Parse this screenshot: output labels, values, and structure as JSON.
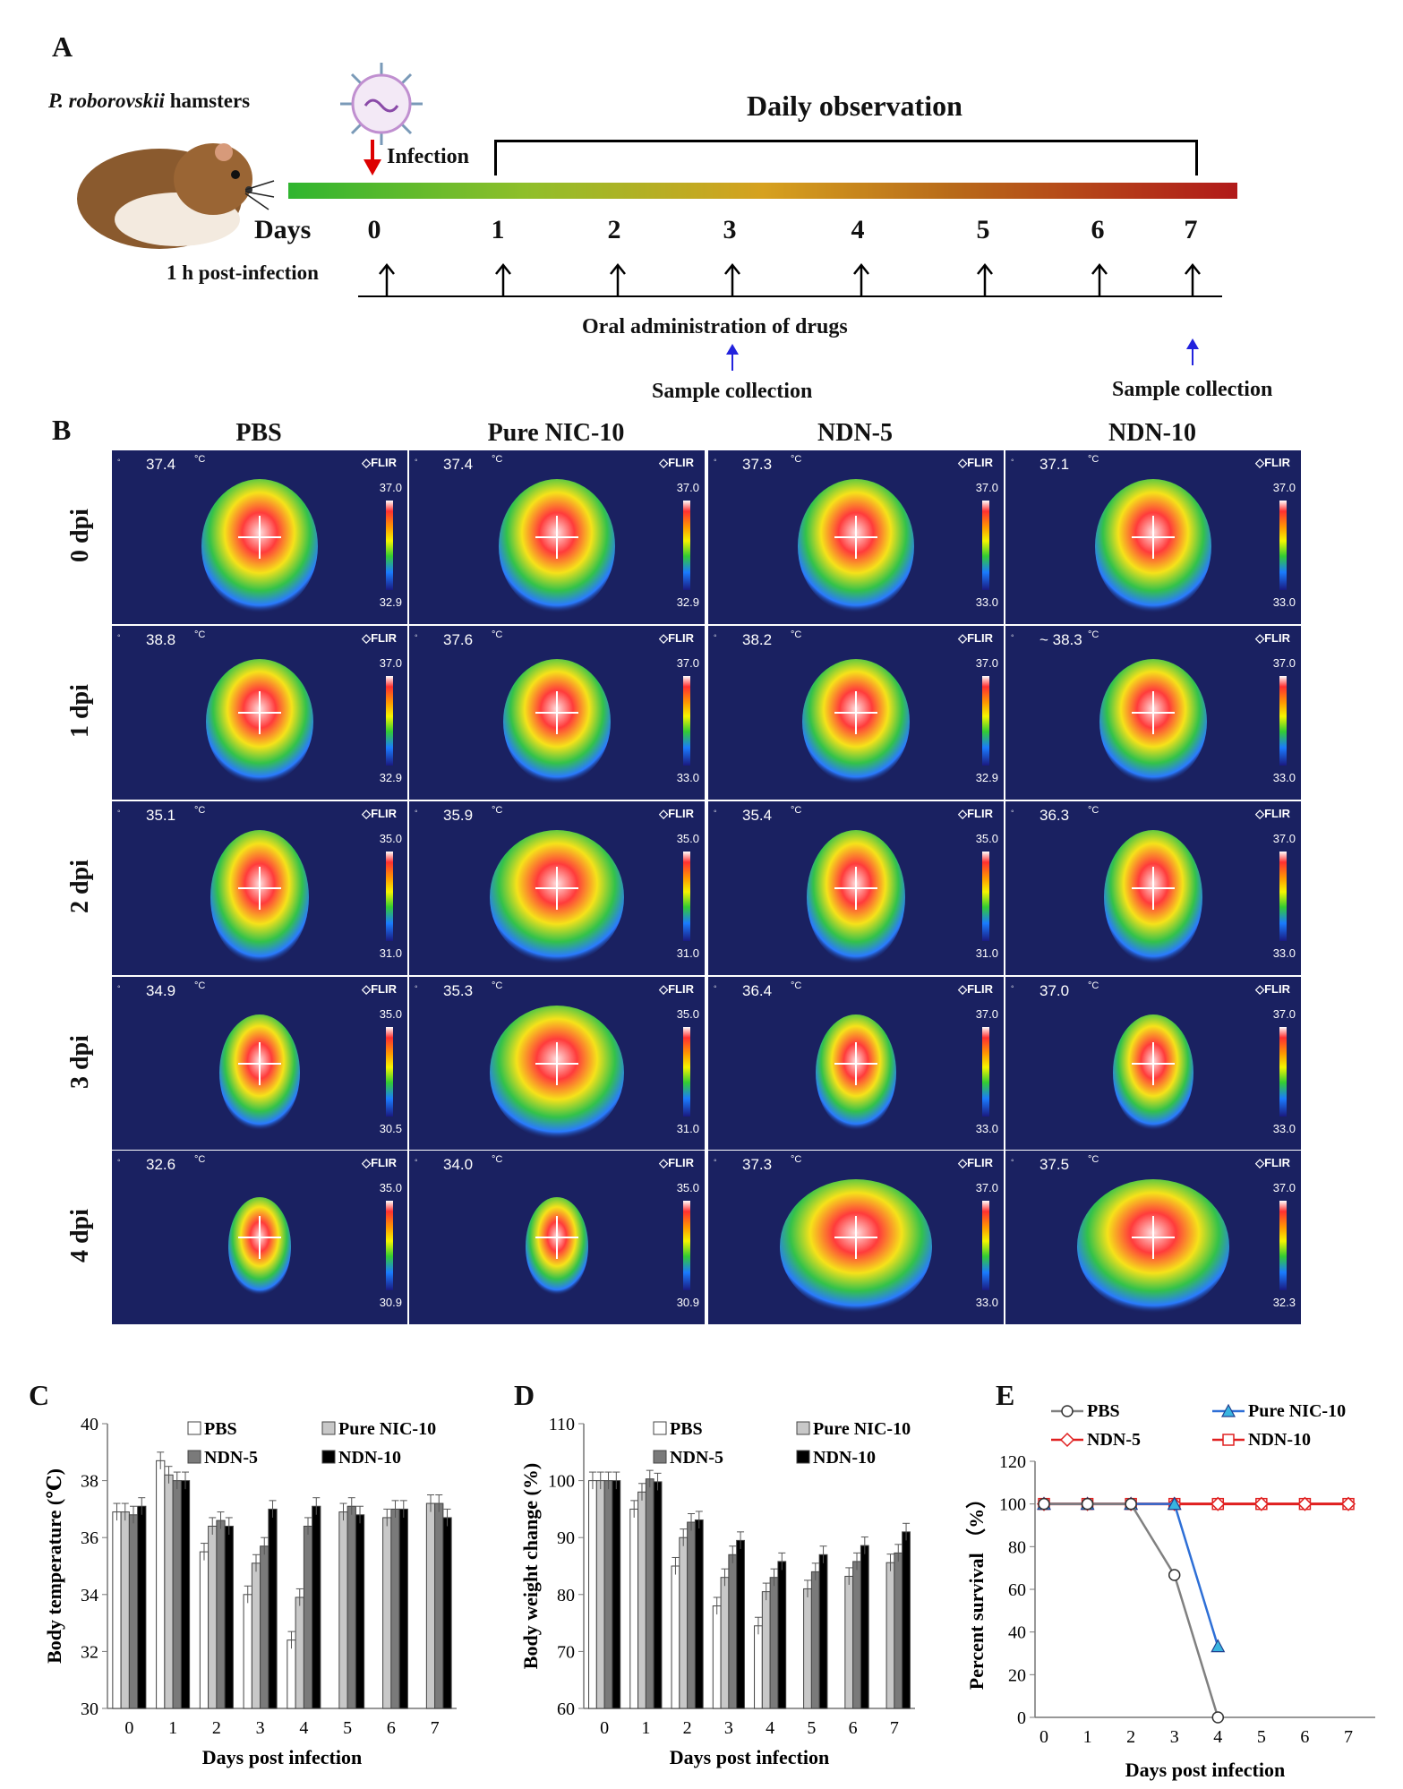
{
  "panels": {
    "a": "A",
    "b": "B",
    "c": "C",
    "d": "D",
    "e": "E"
  },
  "panel_a": {
    "species": "P. roborovskii",
    "species_suffix": "hamsters",
    "daily_observation": "Daily observation",
    "infection": "Infection",
    "days_label": "Days",
    "days": [
      "0",
      "1",
      "2",
      "3",
      "4",
      "5",
      "6",
      "7"
    ],
    "post_infection": "1 h post-infection",
    "oral": "Oral administration of drugs",
    "sample1": "Sample collection",
    "sample2": "Sample collection"
  },
  "panel_b": {
    "columns": [
      "PBS",
      "Pure NIC-10",
      "NDN-5",
      "NDN-10"
    ],
    "rows": [
      "0 dpi",
      "1 dpi",
      "2 dpi",
      "3 dpi",
      "4 dpi"
    ],
    "unit": "°C",
    "brand": "FLIR",
    "tiles": [
      [
        {
          "t": "37.4",
          "max": "37.0",
          "min": "32.9"
        },
        {
          "t": "37.4",
          "max": "37.0",
          "min": "32.9"
        },
        {
          "t": "37.3",
          "max": "37.0",
          "min": "33.0"
        },
        {
          "t": "37.1",
          "max": "37.0",
          "min": "33.0"
        }
      ],
      [
        {
          "t": "38.8",
          "max": "37.0",
          "min": "32.9"
        },
        {
          "t": "37.6",
          "max": "37.0",
          "min": "33.0"
        },
        {
          "t": "38.2",
          "max": "37.0",
          "min": "32.9"
        },
        {
          "t": "~ 38.3",
          "max": "37.0",
          "min": "33.0"
        }
      ],
      [
        {
          "t": "35.1",
          "max": "35.0",
          "min": "31.0"
        },
        {
          "t": "35.9",
          "max": "35.0",
          "min": "31.0"
        },
        {
          "t": "35.4",
          "max": "35.0",
          "min": "31.0"
        },
        {
          "t": "36.3",
          "max": "37.0",
          "min": "33.0"
        }
      ],
      [
        {
          "t": "34.9",
          "max": "35.0",
          "min": "30.5"
        },
        {
          "t": "35.3",
          "max": "35.0",
          "min": "31.0"
        },
        {
          "t": "36.4",
          "max": "37.0",
          "min": "33.0"
        },
        {
          "t": "37.0",
          "max": "37.0",
          "min": "33.0"
        }
      ],
      [
        {
          "t": "32.6",
          "max": "35.0",
          "min": "30.9"
        },
        {
          "t": "34.0",
          "max": "35.0",
          "min": "30.9"
        },
        {
          "t": "37.3",
          "max": "37.0",
          "min": "33.0"
        },
        {
          "t": "37.5",
          "max": "37.0",
          "min": "32.3"
        }
      ]
    ]
  },
  "chart_data": [
    {
      "type": "bar",
      "id": "C",
      "xlabel": "Days post infection",
      "ylabel": "Body temperature (℃)",
      "ylim": [
        30,
        40
      ],
      "yticks": [
        30,
        32,
        34,
        36,
        38,
        40
      ],
      "categories": [
        "0",
        "1",
        "2",
        "3",
        "4",
        "5",
        "6",
        "7"
      ],
      "legend_placement": "top",
      "series": [
        {
          "name": "PBS",
          "color": "#ffffff",
          "values": [
            36.9,
            38.7,
            35.5,
            34.0,
            32.4,
            null,
            null,
            null
          ]
        },
        {
          "name": "Pure NIC-10",
          "color": "#c8c8c8",
          "values": [
            36.9,
            38.2,
            36.4,
            35.1,
            33.9,
            36.9,
            36.7,
            37.2
          ]
        },
        {
          "name": "NDN-5",
          "color": "#7a7a7a",
          "values": [
            36.8,
            38.0,
            36.6,
            35.7,
            36.4,
            37.1,
            37.0,
            37.2
          ]
        },
        {
          "name": "NDN-10",
          "color": "#000000",
          "values": [
            37.1,
            38.0,
            36.4,
            37.0,
            37.1,
            36.8,
            37.0,
            36.7
          ]
        }
      ]
    },
    {
      "type": "bar",
      "id": "D",
      "xlabel": "Days post infection",
      "ylabel": "Body weight change (%)",
      "ylim": [
        60,
        110
      ],
      "yticks": [
        60,
        70,
        80,
        90,
        100,
        110
      ],
      "categories": [
        "0",
        "1",
        "2",
        "3",
        "4",
        "5",
        "6",
        "7"
      ],
      "legend_placement": "top",
      "series": [
        {
          "name": "PBS",
          "color": "#ffffff",
          "values": [
            100,
            95,
            85,
            78,
            74.5,
            null,
            null,
            null
          ]
        },
        {
          "name": "Pure NIC-10",
          "color": "#c8c8c8",
          "values": [
            100,
            98,
            90,
            83,
            80.5,
            81,
            83.2,
            85.6
          ]
        },
        {
          "name": "NDN-5",
          "color": "#7a7a7a",
          "values": [
            100,
            100.3,
            92.7,
            87,
            83,
            84,
            85.8,
            87.3
          ]
        },
        {
          "name": "NDN-10",
          "color": "#000000",
          "values": [
            100,
            99.8,
            93.1,
            89.5,
            85.8,
            87,
            88.6,
            91
          ]
        }
      ]
    },
    {
      "type": "line",
      "id": "E",
      "xlabel": "Days post infection",
      "ylabel": "Percent survival  （%）",
      "ylim": [
        0,
        120
      ],
      "yticks": [
        0,
        20,
        40,
        60,
        80,
        100,
        120
      ],
      "x": [
        0,
        1,
        2,
        3,
        4,
        5,
        6,
        7
      ],
      "legend_placement": "top",
      "series": [
        {
          "name": "PBS",
          "color": "#808080",
          "marker": "circle",
          "x": [
            0,
            1,
            2,
            3,
            4
          ],
          "values": [
            100,
            100,
            100,
            66.7,
            0
          ]
        },
        {
          "name": "Pure NIC-10",
          "color": "#2e6fd6",
          "marker": "triangle",
          "x": [
            0,
            1,
            2,
            3,
            4
          ],
          "values": [
            100,
            100,
            100,
            100,
            33.3
          ]
        },
        {
          "name": "NDN-5",
          "color": "#e02020",
          "marker": "diamond",
          "x": [
            0,
            1,
            2,
            3,
            4,
            5,
            6,
            7
          ],
          "values": [
            100,
            100,
            100,
            100,
            100,
            100,
            100,
            100
          ]
        },
        {
          "name": "NDN-10",
          "color": "#e02020",
          "marker": "square",
          "x": [
            0,
            1,
            2,
            3,
            4,
            5,
            6,
            7
          ],
          "values": [
            100,
            100,
            100,
            100,
            100,
            100,
            100,
            100
          ]
        }
      ]
    }
  ]
}
